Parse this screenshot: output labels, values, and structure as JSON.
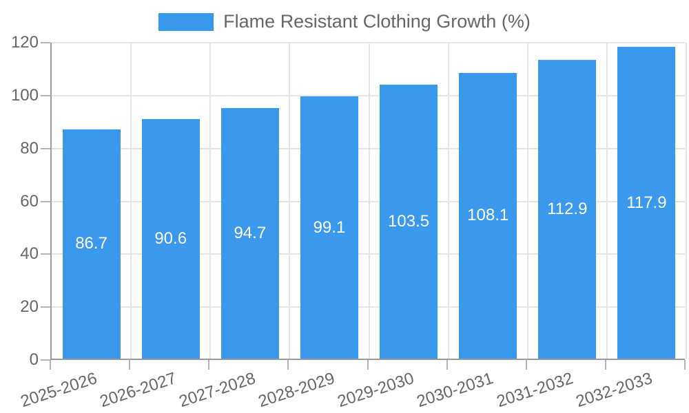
{
  "legend": {
    "label": "Flame Resistant Clothing Growth (%)"
  },
  "chart_data": {
    "type": "bar",
    "title": "Flame Resistant Clothing Growth (%)",
    "categories": [
      "2025-2026",
      "2026-2027",
      "2027-2028",
      "2028-2029",
      "2029-2030",
      "2030-2031",
      "2031-2032",
      "2032-2033"
    ],
    "values": [
      86.7,
      90.6,
      94.7,
      99.1,
      103.5,
      108.1,
      112.9,
      117.9
    ],
    "value_labels": [
      "86.7",
      "90.6",
      "94.7",
      "99.1",
      "103.5",
      "108.1",
      "112.9",
      "117.9"
    ],
    "xlabel": "",
    "ylabel": "",
    "ylim": [
      0,
      120
    ],
    "y_ticks": [
      0,
      20,
      40,
      60,
      80,
      100,
      120
    ],
    "grid": true,
    "legend_position": "top-center",
    "x_label_rotation_deg": -18,
    "value_labels_inside": true,
    "colors": {
      "bar": "#3b99ed",
      "grid": "#e5e5e5",
      "axis": "#9b9b9b",
      "tick_mark": "#b3b3b3",
      "tick_text": "#666666",
      "value_label": "#ffffff",
      "background": "#ffffff"
    }
  }
}
